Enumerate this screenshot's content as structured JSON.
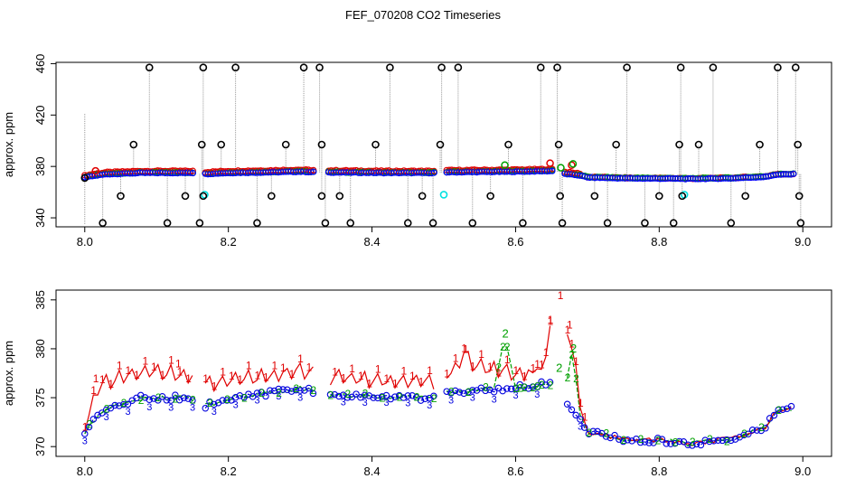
{
  "page_title": "FEF_070208  CO2 Timeseries",
  "chart_data": [
    {
      "type": "scatter",
      "title": "",
      "xlabel": "",
      "ylabel": "approx. ppm",
      "xlim": [
        7.96,
        9.04
      ],
      "ylim": [
        333,
        461
      ],
      "x_ticks": [
        "8.0",
        "8.2",
        "8.4",
        "8.6",
        "8.8",
        "9.0"
      ],
      "x_tick_values": [
        8.0,
        8.2,
        8.4,
        8.6,
        8.8,
        9.0
      ],
      "y_ticks": [
        "340",
        "380",
        "420",
        "460"
      ],
      "y_tick_values": [
        340,
        380,
        420,
        460
      ],
      "grid": false,
      "colors": {
        "baseline": "#0000ff",
        "red": "#e00000",
        "green": "#00a000",
        "outlier": "#000000",
        "cyan": "#00e0e0",
        "spike_line": "#999999"
      },
      "baseline_knots": [
        [
          8.0,
          371.5
        ],
        [
          8.01,
          372.5
        ],
        [
          8.03,
          374
        ],
        [
          8.08,
          375
        ],
        [
          8.15,
          375
        ],
        [
          8.162,
          374
        ],
        [
          8.2,
          375
        ],
        [
          8.26,
          375.5
        ],
        [
          8.3,
          376
        ],
        [
          8.325,
          375.5
        ],
        [
          8.33,
          375.5
        ],
        [
          8.42,
          375
        ],
        [
          8.49,
          375
        ],
        [
          8.5,
          375.5
        ],
        [
          8.6,
          376
        ],
        [
          8.65,
          376.5
        ],
        [
          8.66,
          376
        ],
        [
          8.665,
          374.5
        ],
        [
          8.69,
          373
        ],
        [
          8.7,
          371.5
        ],
        [
          8.75,
          370.8
        ],
        [
          8.83,
          370.5
        ],
        [
          8.84,
          370.3
        ],
        [
          8.9,
          370.8
        ],
        [
          8.95,
          372
        ],
        [
          8.96,
          373.5
        ],
        [
          8.99,
          374
        ]
      ],
      "outliers": [
        [
          8.0,
          371
        ],
        [
          8.025,
          336
        ],
        [
          8.05,
          357
        ],
        [
          8.068,
          397
        ],
        [
          8.09,
          457
        ],
        [
          8.115,
          336
        ],
        [
          8.14,
          357
        ],
        [
          8.16,
          336
        ],
        [
          8.163,
          397
        ],
        [
          8.165,
          457
        ],
        [
          8.165,
          357
        ],
        [
          8.19,
          397
        ],
        [
          8.21,
          457
        ],
        [
          8.24,
          336
        ],
        [
          8.26,
          357
        ],
        [
          8.28,
          397
        ],
        [
          8.305,
          457
        ],
        [
          8.327,
          457
        ],
        [
          8.33,
          397
        ],
        [
          8.33,
          357
        ],
        [
          8.335,
          336
        ],
        [
          8.355,
          357
        ],
        [
          8.37,
          336
        ],
        [
          8.405,
          397
        ],
        [
          8.425,
          457
        ],
        [
          8.45,
          336
        ],
        [
          8.47,
          357
        ],
        [
          8.485,
          336
        ],
        [
          8.495,
          397
        ],
        [
          8.497,
          457
        ],
        [
          8.52,
          457
        ],
        [
          8.54,
          336
        ],
        [
          8.565,
          357
        ],
        [
          8.59,
          397
        ],
        [
          8.61,
          336
        ],
        [
          8.635,
          457
        ],
        [
          8.658,
          457
        ],
        [
          8.66,
          397
        ],
        [
          8.662,
          357
        ],
        [
          8.665,
          336
        ],
        [
          8.71,
          357
        ],
        [
          8.728,
          336
        ],
        [
          8.74,
          397
        ],
        [
          8.755,
          457
        ],
        [
          8.78,
          336
        ],
        [
          8.8,
          357
        ],
        [
          8.82,
          336
        ],
        [
          8.828,
          397
        ],
        [
          8.83,
          457
        ],
        [
          8.832,
          357
        ],
        [
          8.855,
          397
        ],
        [
          8.875,
          457
        ],
        [
          8.9,
          336
        ],
        [
          8.92,
          357
        ],
        [
          8.94,
          397
        ],
        [
          8.965,
          457
        ],
        [
          8.99,
          457
        ],
        [
          8.993,
          397
        ],
        [
          8.995,
          357
        ],
        [
          8.997,
          336
        ]
      ],
      "cyan_points": [
        [
          8.167,
          358
        ],
        [
          8.5,
          358
        ],
        [
          8.835,
          358
        ]
      ],
      "green_points": [
        [
          8.585,
          381
        ],
        [
          8.663,
          379
        ],
        [
          8.68,
          382
        ]
      ],
      "red_points": [
        [
          8.015,
          376.5
        ],
        [
          8.648,
          382.5
        ],
        [
          8.678,
          381
        ]
      ]
    },
    {
      "type": "line",
      "title": "",
      "xlabel": "",
      "ylabel": "approx. ppm",
      "xlim": [
        7.96,
        9.04
      ],
      "ylim": [
        369,
        386
      ],
      "x_ticks": [
        "8.0",
        "8.2",
        "8.4",
        "8.6",
        "8.8",
        "9.0"
      ],
      "x_tick_values": [
        8.0,
        8.2,
        8.4,
        8.6,
        8.8,
        9.0
      ],
      "y_ticks": [
        "370",
        "375",
        "380",
        "385"
      ],
      "y_tick_values": [
        370,
        375,
        380,
        385
      ],
      "grid": false,
      "series": [
        {
          "marker": "1",
          "color": "#e00000",
          "knots": [
            [
              8.0,
              372
            ],
            [
              8.01,
              374
            ],
            [
              8.02,
              376
            ],
            [
              8.05,
              377
            ],
            [
              8.1,
              377.5
            ],
            [
              8.15,
              377
            ],
            [
              8.162,
              376
            ],
            [
              8.2,
              376.5
            ],
            [
              8.26,
              377
            ],
            [
              8.3,
              377.5
            ],
            [
              8.325,
              377
            ],
            [
              8.33,
              377
            ],
            [
              8.42,
              376.5
            ],
            [
              8.49,
              376.5
            ],
            [
              8.5,
              377
            ],
            [
              8.52,
              378
            ],
            [
              8.53,
              379.5
            ],
            [
              8.54,
              378
            ],
            [
              8.58,
              377.5
            ],
            [
              8.6,
              377
            ],
            [
              8.64,
              378
            ],
            [
              8.648,
              382.5
            ],
            [
              8.655,
              378
            ],
            [
              8.66,
              385
            ],
            [
              8.67,
              383
            ],
            [
              8.675,
              379
            ],
            [
              8.68,
              381
            ],
            [
              8.69,
              374
            ],
            [
              8.7,
              371.5
            ],
            [
              8.75,
              370.8
            ],
            [
              8.83,
              370.5
            ],
            [
              8.84,
              370.3
            ],
            [
              8.9,
              370.8
            ],
            [
              8.95,
              372
            ],
            [
              8.96,
              373.5
            ],
            [
              8.99,
              374
            ]
          ],
          "peaks": [
            [
              8.662,
              385
            ],
            [
              8.648,
              382.5
            ],
            [
              8.675,
              382
            ],
            [
              8.53,
              379.5
            ],
            [
              8.13,
              378
            ],
            [
              8.015,
              376.5
            ]
          ]
        },
        {
          "marker": "2",
          "color": "#00a000",
          "knots": [
            [
              8.0,
              371.5
            ],
            [
              8.01,
              372.5
            ],
            [
              8.03,
              374
            ],
            [
              8.08,
              375
            ],
            [
              8.15,
              375
            ],
            [
              8.162,
              374
            ],
            [
              8.2,
              375
            ],
            [
              8.26,
              375.5
            ],
            [
              8.3,
              376
            ],
            [
              8.325,
              375.5
            ],
            [
              8.33,
              375.5
            ],
            [
              8.42,
              375
            ],
            [
              8.49,
              375
            ],
            [
              8.5,
              375.5
            ],
            [
              8.57,
              376
            ],
            [
              8.585,
              381.5
            ],
            [
              8.6,
              376
            ],
            [
              8.65,
              376.5
            ],
            [
              8.66,
              378
            ],
            [
              8.67,
              376
            ],
            [
              8.68,
              380
            ],
            [
              8.69,
              373
            ],
            [
              8.7,
              371.5
            ],
            [
              8.75,
              370.8
            ],
            [
              8.83,
              370.5
            ],
            [
              8.84,
              370.3
            ],
            [
              8.9,
              370.8
            ],
            [
              8.95,
              372
            ],
            [
              8.96,
              373.5
            ],
            [
              8.99,
              374
            ]
          ],
          "peaks": [
            [
              8.585,
              381.5
            ],
            [
              8.68,
              380
            ],
            [
              8.66,
              378
            ]
          ]
        },
        {
          "marker": "3",
          "color": "#0000dd",
          "knots": [
            [
              8.0,
              371.5
            ],
            [
              8.01,
              372.5
            ],
            [
              8.03,
              374
            ],
            [
              8.08,
              375
            ],
            [
              8.15,
              375
            ],
            [
              8.162,
              374
            ],
            [
              8.2,
              375
            ],
            [
              8.26,
              375.5
            ],
            [
              8.3,
              376
            ],
            [
              8.325,
              375.5
            ],
            [
              8.33,
              375.5
            ],
            [
              8.42,
              375
            ],
            [
              8.49,
              375
            ],
            [
              8.5,
              375.5
            ],
            [
              8.6,
              376
            ],
            [
              8.65,
              376.5
            ],
            [
              8.66,
              376
            ],
            [
              8.665,
              374.5
            ],
            [
              8.69,
              373
            ],
            [
              8.7,
              371.5
            ],
            [
              8.75,
              370.8
            ],
            [
              8.83,
              370.5
            ],
            [
              8.84,
              370.3
            ],
            [
              8.9,
              370.8
            ],
            [
              8.95,
              372
            ],
            [
              8.96,
              373.5
            ],
            [
              8.99,
              374
            ]
          ],
          "peaks": []
        }
      ]
    }
  ]
}
